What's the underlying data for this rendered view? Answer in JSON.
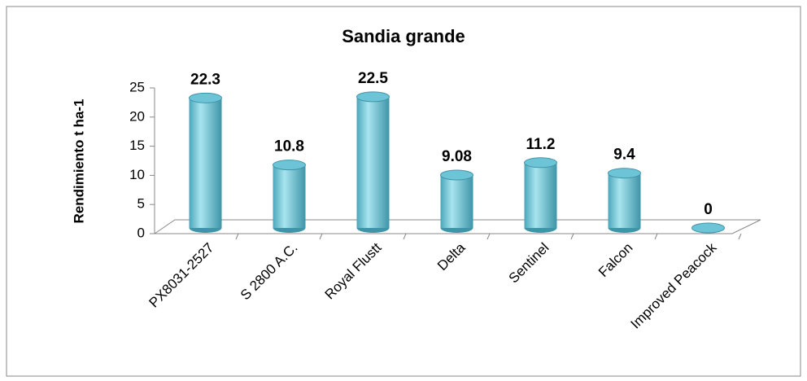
{
  "chart_data": {
    "type": "bar",
    "title": "Sandia grande",
    "y_label": "Rendimiento t ha-1",
    "categories": [
      "PX8031-2527",
      "S 2800 A.C.",
      "Royal Flustt",
      "Delta",
      "Sentinel",
      "Falcon",
      "Improved Peacock"
    ],
    "values": [
      22.3,
      10.8,
      22.5,
      9.08,
      11.2,
      9.4,
      0
    ],
    "color": "#6cc4d6",
    "ylim": [
      0,
      25
    ],
    "yticks": [
      0,
      5,
      10,
      15,
      20,
      25
    ],
    "grid": false
  }
}
